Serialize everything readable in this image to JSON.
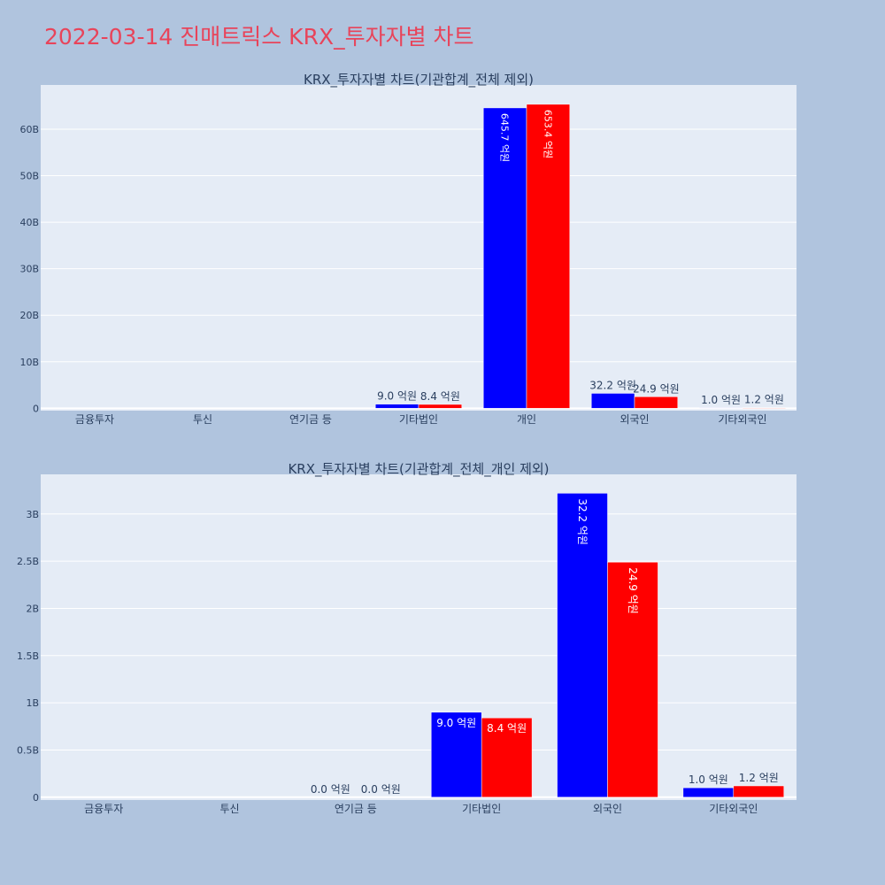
{
  "page_title": "2022-03-14 진매트릭스 KRX_투자자별 차트",
  "colors": {
    "series_a": "#0000ff",
    "series_b": "#ff0000",
    "plot_bg": "#e5ecf6",
    "page_bg": "#b0c4de",
    "title": "#e8445a"
  },
  "chart_data": [
    {
      "type": "bar",
      "title": "KRX_투자자별 차트(기관합계_전체 제외)",
      "categories": [
        "금융투자",
        "투신",
        "연기금 등",
        "기타법인",
        "개인",
        "외국인",
        "기타외국인"
      ],
      "ylim": [
        -0.5,
        69.5
      ],
      "yticks": [
        0,
        10,
        20,
        30,
        40,
        50,
        60
      ],
      "ytick_labels": [
        "0",
        "10B",
        "20B",
        "30B",
        "40B",
        "50B",
        "60B"
      ],
      "grid": true,
      "series": [
        {
          "color": "#0000ff",
          "values": [
            0,
            0,
            0,
            0.9,
            64.57,
            3.22,
            0.1
          ],
          "labels": [
            "",
            "",
            "",
            "9.0 억원",
            "645.7 억원",
            "32.2 억원",
            "1.0 억원"
          ],
          "label_pos": [
            "",
            "",
            "",
            "outside",
            "inside",
            "outside",
            "outside"
          ]
        },
        {
          "color": "#ff0000",
          "values": [
            0,
            0,
            0,
            0.84,
            65.34,
            2.49,
            0.12
          ],
          "labels": [
            "",
            "",
            "",
            "8.4 억원",
            "653.4 억원",
            "24.9 억원",
            "1.2 억원"
          ],
          "label_pos": [
            "",
            "",
            "",
            "outside",
            "inside",
            "outside",
            "outside"
          ]
        }
      ]
    },
    {
      "type": "bar",
      "title": "KRX_투자자별 차트(기관합계_전체_개인 제외)",
      "categories": [
        "금융투자",
        "투신",
        "연기금 등",
        "기타법인",
        "외국인",
        "기타외국인"
      ],
      "ylim": [
        -0.03,
        3.42
      ],
      "yticks": [
        0,
        0.5,
        1,
        1.5,
        2,
        2.5,
        3
      ],
      "ytick_labels": [
        "0",
        "0.5B",
        "1B",
        "1.5B",
        "2B",
        "2.5B",
        "3B"
      ],
      "grid": true,
      "series": [
        {
          "color": "#0000ff",
          "values": [
            0,
            0,
            0,
            0.9,
            3.22,
            0.1
          ],
          "labels": [
            "",
            "",
            "0.0 억원",
            "9.0 억원",
            "32.2 억원",
            "1.0 억원"
          ],
          "label_pos": [
            "",
            "",
            "outside",
            "inside-h",
            "inside",
            "outside"
          ]
        },
        {
          "color": "#ff0000",
          "values": [
            0,
            0,
            0,
            0.84,
            2.49,
            0.12
          ],
          "labels": [
            "",
            "",
            "0.0 억원",
            "8.4 억원",
            "24.9 억원",
            "1.2 억원"
          ],
          "label_pos": [
            "",
            "",
            "outside",
            "inside-h",
            "inside",
            "outside"
          ]
        }
      ]
    }
  ]
}
